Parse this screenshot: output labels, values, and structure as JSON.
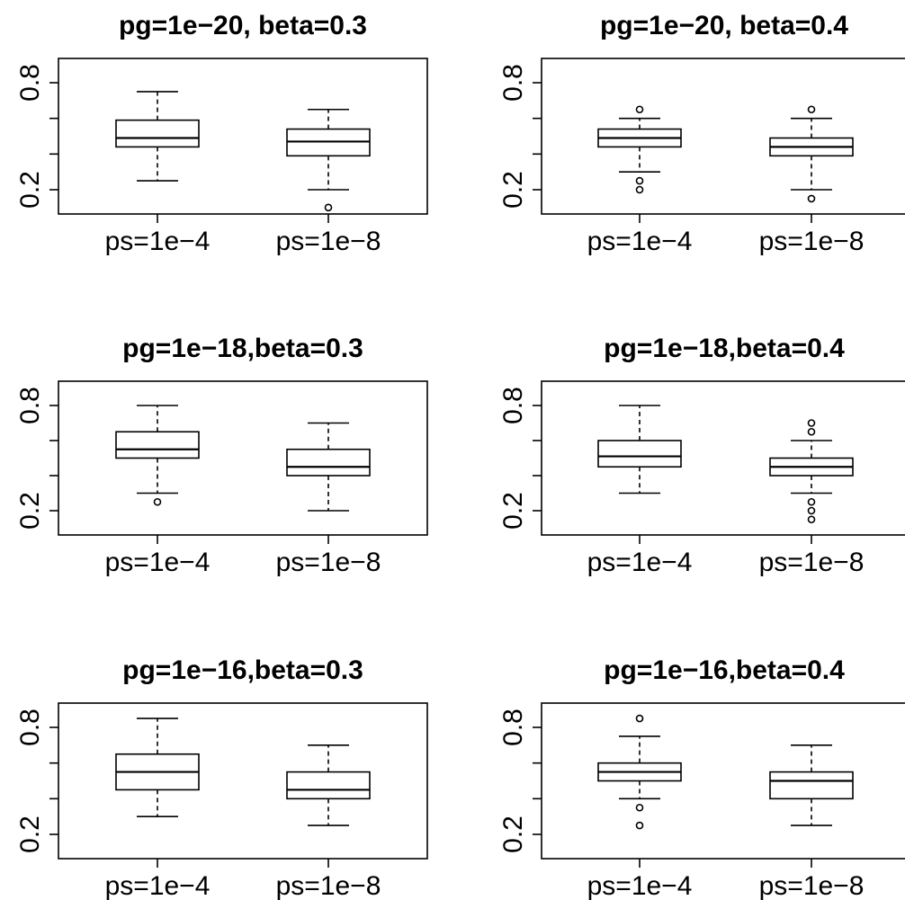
{
  "chart_data": [
    {
      "type": "boxplot",
      "title": "pg=1e−20, beta=0.3",
      "categories": [
        "ps=1e−4",
        "ps=1e−8"
      ],
      "yticks": [
        "0.2",
        "0.8"
      ],
      "ylim": [
        0.1,
        0.95
      ],
      "boxes": [
        {
          "whisker_low": 0.25,
          "q1": 0.44,
          "median": 0.49,
          "q3": 0.59,
          "whisker_high": 0.75,
          "outliers": []
        },
        {
          "whisker_low": 0.2,
          "q1": 0.39,
          "median": 0.47,
          "q3": 0.54,
          "whisker_high": 0.65,
          "outliers": [
            0.1
          ]
        }
      ]
    },
    {
      "type": "boxplot",
      "title": "pg=1e−20, beta=0.4",
      "categories": [
        "ps=1e−4",
        "ps=1e−8"
      ],
      "yticks": [
        "0.2",
        "0.8"
      ],
      "ylim": [
        0.1,
        0.95
      ],
      "boxes": [
        {
          "whisker_low": 0.3,
          "q1": 0.44,
          "median": 0.49,
          "q3": 0.54,
          "whisker_high": 0.6,
          "outliers": [
            0.2,
            0.25,
            0.65
          ]
        },
        {
          "whisker_low": 0.2,
          "q1": 0.39,
          "median": 0.44,
          "q3": 0.49,
          "whisker_high": 0.6,
          "outliers": [
            0.15,
            0.65
          ]
        }
      ]
    },
    {
      "type": "boxplot",
      "title": "pg=1e−18,beta=0.3",
      "categories": [
        "ps=1e−4",
        "ps=1e−8"
      ],
      "yticks": [
        "0.2",
        "0.8"
      ],
      "ylim": [
        0.1,
        0.95
      ],
      "boxes": [
        {
          "whisker_low": 0.3,
          "q1": 0.5,
          "median": 0.55,
          "q3": 0.65,
          "whisker_high": 0.8,
          "outliers": [
            0.25
          ]
        },
        {
          "whisker_low": 0.2,
          "q1": 0.4,
          "median": 0.45,
          "q3": 0.55,
          "whisker_high": 0.7,
          "outliers": []
        }
      ]
    },
    {
      "type": "boxplot",
      "title": "pg=1e−18,beta=0.4",
      "categories": [
        "ps=1e−4",
        "ps=1e−8"
      ],
      "yticks": [
        "0.2",
        "0.8"
      ],
      "ylim": [
        0.1,
        0.95
      ],
      "boxes": [
        {
          "whisker_low": 0.3,
          "q1": 0.45,
          "median": 0.51,
          "q3": 0.6,
          "whisker_high": 0.8,
          "outliers": []
        },
        {
          "whisker_low": 0.3,
          "q1": 0.4,
          "median": 0.45,
          "q3": 0.5,
          "whisker_high": 0.6,
          "outliers": [
            0.15,
            0.2,
            0.25,
            0.65,
            0.7
          ]
        }
      ]
    },
    {
      "type": "boxplot",
      "title": "pg=1e−16,beta=0.3",
      "categories": [
        "ps=1e−4",
        "ps=1e−8"
      ],
      "yticks": [
        "0.2",
        "0.8"
      ],
      "ylim": [
        0.1,
        0.95
      ],
      "boxes": [
        {
          "whisker_low": 0.3,
          "q1": 0.45,
          "median": 0.55,
          "q3": 0.65,
          "whisker_high": 0.85,
          "outliers": []
        },
        {
          "whisker_low": 0.25,
          "q1": 0.4,
          "median": 0.45,
          "q3": 0.55,
          "whisker_high": 0.7,
          "outliers": []
        }
      ]
    },
    {
      "type": "boxplot",
      "title": "pg=1e−16,beta=0.4",
      "categories": [
        "ps=1e−4",
        "ps=1e−8"
      ],
      "yticks": [
        "0.2",
        "0.8"
      ],
      "ylim": [
        0.1,
        0.95
      ],
      "boxes": [
        {
          "whisker_low": 0.4,
          "q1": 0.5,
          "median": 0.55,
          "q3": 0.6,
          "whisker_high": 0.75,
          "outliers": [
            0.25,
            0.35,
            0.85
          ]
        },
        {
          "whisker_low": 0.25,
          "q1": 0.4,
          "median": 0.5,
          "q3": 0.55,
          "whisker_high": 0.7,
          "outliers": []
        }
      ]
    }
  ]
}
